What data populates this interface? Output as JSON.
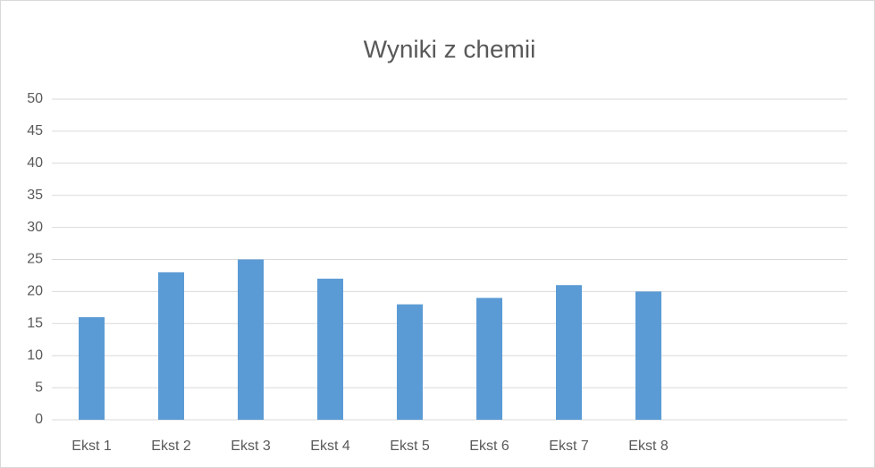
{
  "chart_data": {
    "type": "bar",
    "title": "Wyniki z chemii",
    "categories": [
      "Ekst 1",
      "Ekst 2",
      "Ekst 3",
      "Ekst 4",
      "Ekst 5",
      "Ekst 6",
      "Ekst 7",
      "Ekst 8",
      null,
      null
    ],
    "values": [
      16,
      23,
      25,
      22,
      18,
      19,
      21,
      20,
      null,
      null
    ],
    "color": "#5b9bd5",
    "ylim": [
      0,
      50
    ],
    "yticks": [
      0,
      5,
      10,
      15,
      20,
      25,
      30,
      35,
      40,
      45,
      50
    ],
    "grid": true
  }
}
